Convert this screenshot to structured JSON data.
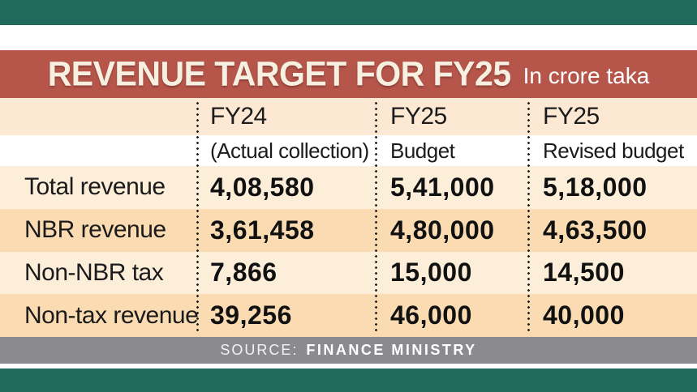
{
  "header": {
    "title": "REVENUE TARGET FOR FY25",
    "subtitle": "In crore taka"
  },
  "table": {
    "columns": [
      {
        "line1": "FY24",
        "line2": "(Actual collection)"
      },
      {
        "line1": "FY25",
        "line2": "Budget"
      },
      {
        "line1": "FY25",
        "line2": "Revised budget"
      }
    ],
    "rows": [
      {
        "label": "Total revenue",
        "values": [
          "4,08,580",
          "5,41,000",
          "5,18,000"
        ]
      },
      {
        "label": "NBR revenue",
        "values": [
          "3,61,458",
          "4,80,000",
          "4,63,500"
        ]
      },
      {
        "label": "Non-NBR tax",
        "values": [
          "7,866",
          "15,000",
          "14,500"
        ]
      },
      {
        "label": "Non-tax revenue",
        "values": [
          "39,256",
          "46,000",
          "40,000"
        ]
      }
    ]
  },
  "source": {
    "prefix": "SOURCE:",
    "name": "FINANCE MINISTRY"
  },
  "colors": {
    "teal_border": "#216a5c",
    "banner_red": "#b6564b",
    "banner_title_cream": "#f7f0e1",
    "header_band_peach": "#fce8d3",
    "row_cream": "#fdeeda",
    "row_peach": "#fbdcb2",
    "source_gray": "#8b8a8f",
    "text_dark": "#1b1b1b"
  },
  "chart_data": {
    "type": "table",
    "title": "REVENUE TARGET FOR FY25",
    "unit": "In crore taka",
    "columns": [
      "FY24 (Actual collection)",
      "FY25 Budget",
      "FY25 Revised budget"
    ],
    "rows": [
      {
        "label": "Total revenue",
        "fy24_actual": 408580,
        "fy25_budget": 541000,
        "fy25_revised_budget": 518000
      },
      {
        "label": "NBR revenue",
        "fy24_actual": 361458,
        "fy25_budget": 480000,
        "fy25_revised_budget": 463500
      },
      {
        "label": "Non-NBR tax",
        "fy24_actual": 7866,
        "fy25_budget": 15000,
        "fy25_revised_budget": 14500
      },
      {
        "label": "Non-tax revenue",
        "fy24_actual": 39256,
        "fy25_budget": 46000,
        "fy25_revised_budget": 40000
      }
    ],
    "source": "FINANCE MINISTRY"
  }
}
